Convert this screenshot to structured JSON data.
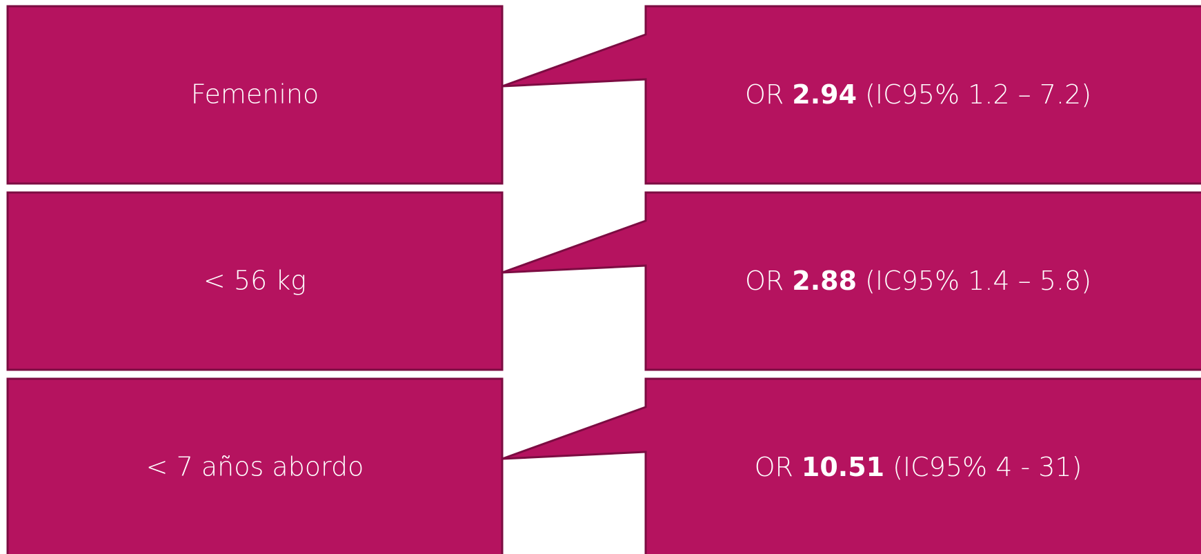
{
  "rows": [
    {
      "factor": "Femenino",
      "or_prefix": "OR",
      "or_value": "2.94",
      "ci": "(IC95% 1.2 – 7.2)"
    },
    {
      "factor": "< 56 kg",
      "or_prefix": "OR",
      "or_value": "2.88",
      "ci": "(IC95% 1.4 – 5.8)"
    },
    {
      "factor": "< 7 años abordo",
      "or_prefix": "OR",
      "or_value": "10.51",
      "ci": "(IC95% 4 - 31)"
    }
  ]
}
